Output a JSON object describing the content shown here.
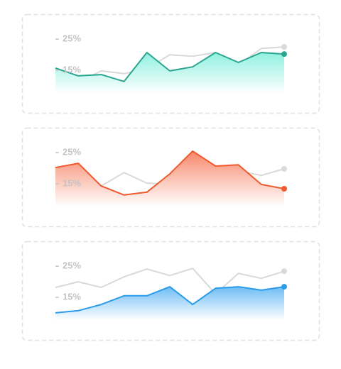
{
  "chart_data": [
    {
      "type": "area",
      "categories": [
        null,
        null,
        null,
        null,
        null,
        null,
        null,
        null,
        null,
        null,
        null
      ],
      "ylim": [
        7.7,
        28
      ],
      "yticks": [
        {
          "value": 25,
          "label": "25%"
        },
        {
          "value": 15,
          "label": "15%"
        }
      ],
      "gradient": [
        "#8ff0e0",
        "#ffffff"
      ],
      "series": [
        {
          "color": "#d9d9d9",
          "values": [
            11.1,
            11.1,
            14.8,
            13.9,
            15.5,
            20.0,
            19.5,
            20.7,
            16.6,
            22.0,
            22.5
          ]
        },
        {
          "color": "#2aa58f",
          "values": [
            15.7,
            13.2,
            13.6,
            11.4,
            20.7,
            14.8,
            16.1,
            20.7,
            17.5,
            20.7,
            20.2
          ]
        }
      ]
    },
    {
      "type": "area",
      "categories": [
        null,
        null,
        null,
        null,
        null,
        null,
        null,
        null,
        null,
        null,
        null
      ],
      "ylim": [
        7.7,
        28
      ],
      "yticks": [
        {
          "value": 25,
          "label": "25%"
        },
        {
          "value": 15,
          "label": "15%"
        }
      ],
      "gradient": [
        "#f7876a",
        "#ffffff"
      ],
      "series": [
        {
          "color": "#d9d9d9",
          "values": [
            8.2,
            9.1,
            14.3,
            18.6,
            15.2,
            14.8,
            15.7,
            11.8,
            19.1,
            17.7,
            19.8
          ]
        },
        {
          "color": "#ef5a2e",
          "values": [
            20.2,
            21.6,
            14.3,
            11.4,
            12.3,
            18.2,
            25.5,
            20.7,
            21.1,
            14.8,
            13.4
          ]
        }
      ]
    },
    {
      "type": "area",
      "categories": [
        null,
        null,
        null,
        null,
        null,
        null,
        null,
        null,
        null,
        null,
        null
      ],
      "ylim": [
        7.7,
        28
      ],
      "yticks": [
        {
          "value": 25,
          "label": "25%"
        },
        {
          "value": 15,
          "label": "15%"
        }
      ],
      "gradient": [
        "#6ebdf5",
        "#ffffff"
      ],
      "series": [
        {
          "color": "#d9d9d9",
          "values": [
            18.2,
            20.0,
            18.2,
            21.6,
            24.1,
            22.0,
            24.3,
            16.1,
            22.7,
            21.1,
            23.4
          ]
        },
        {
          "color": "#2a9be8",
          "values": [
            10.0,
            10.7,
            12.7,
            15.5,
            15.5,
            18.4,
            12.7,
            17.9,
            18.4,
            17.3,
            18.4
          ]
        }
      ]
    }
  ]
}
